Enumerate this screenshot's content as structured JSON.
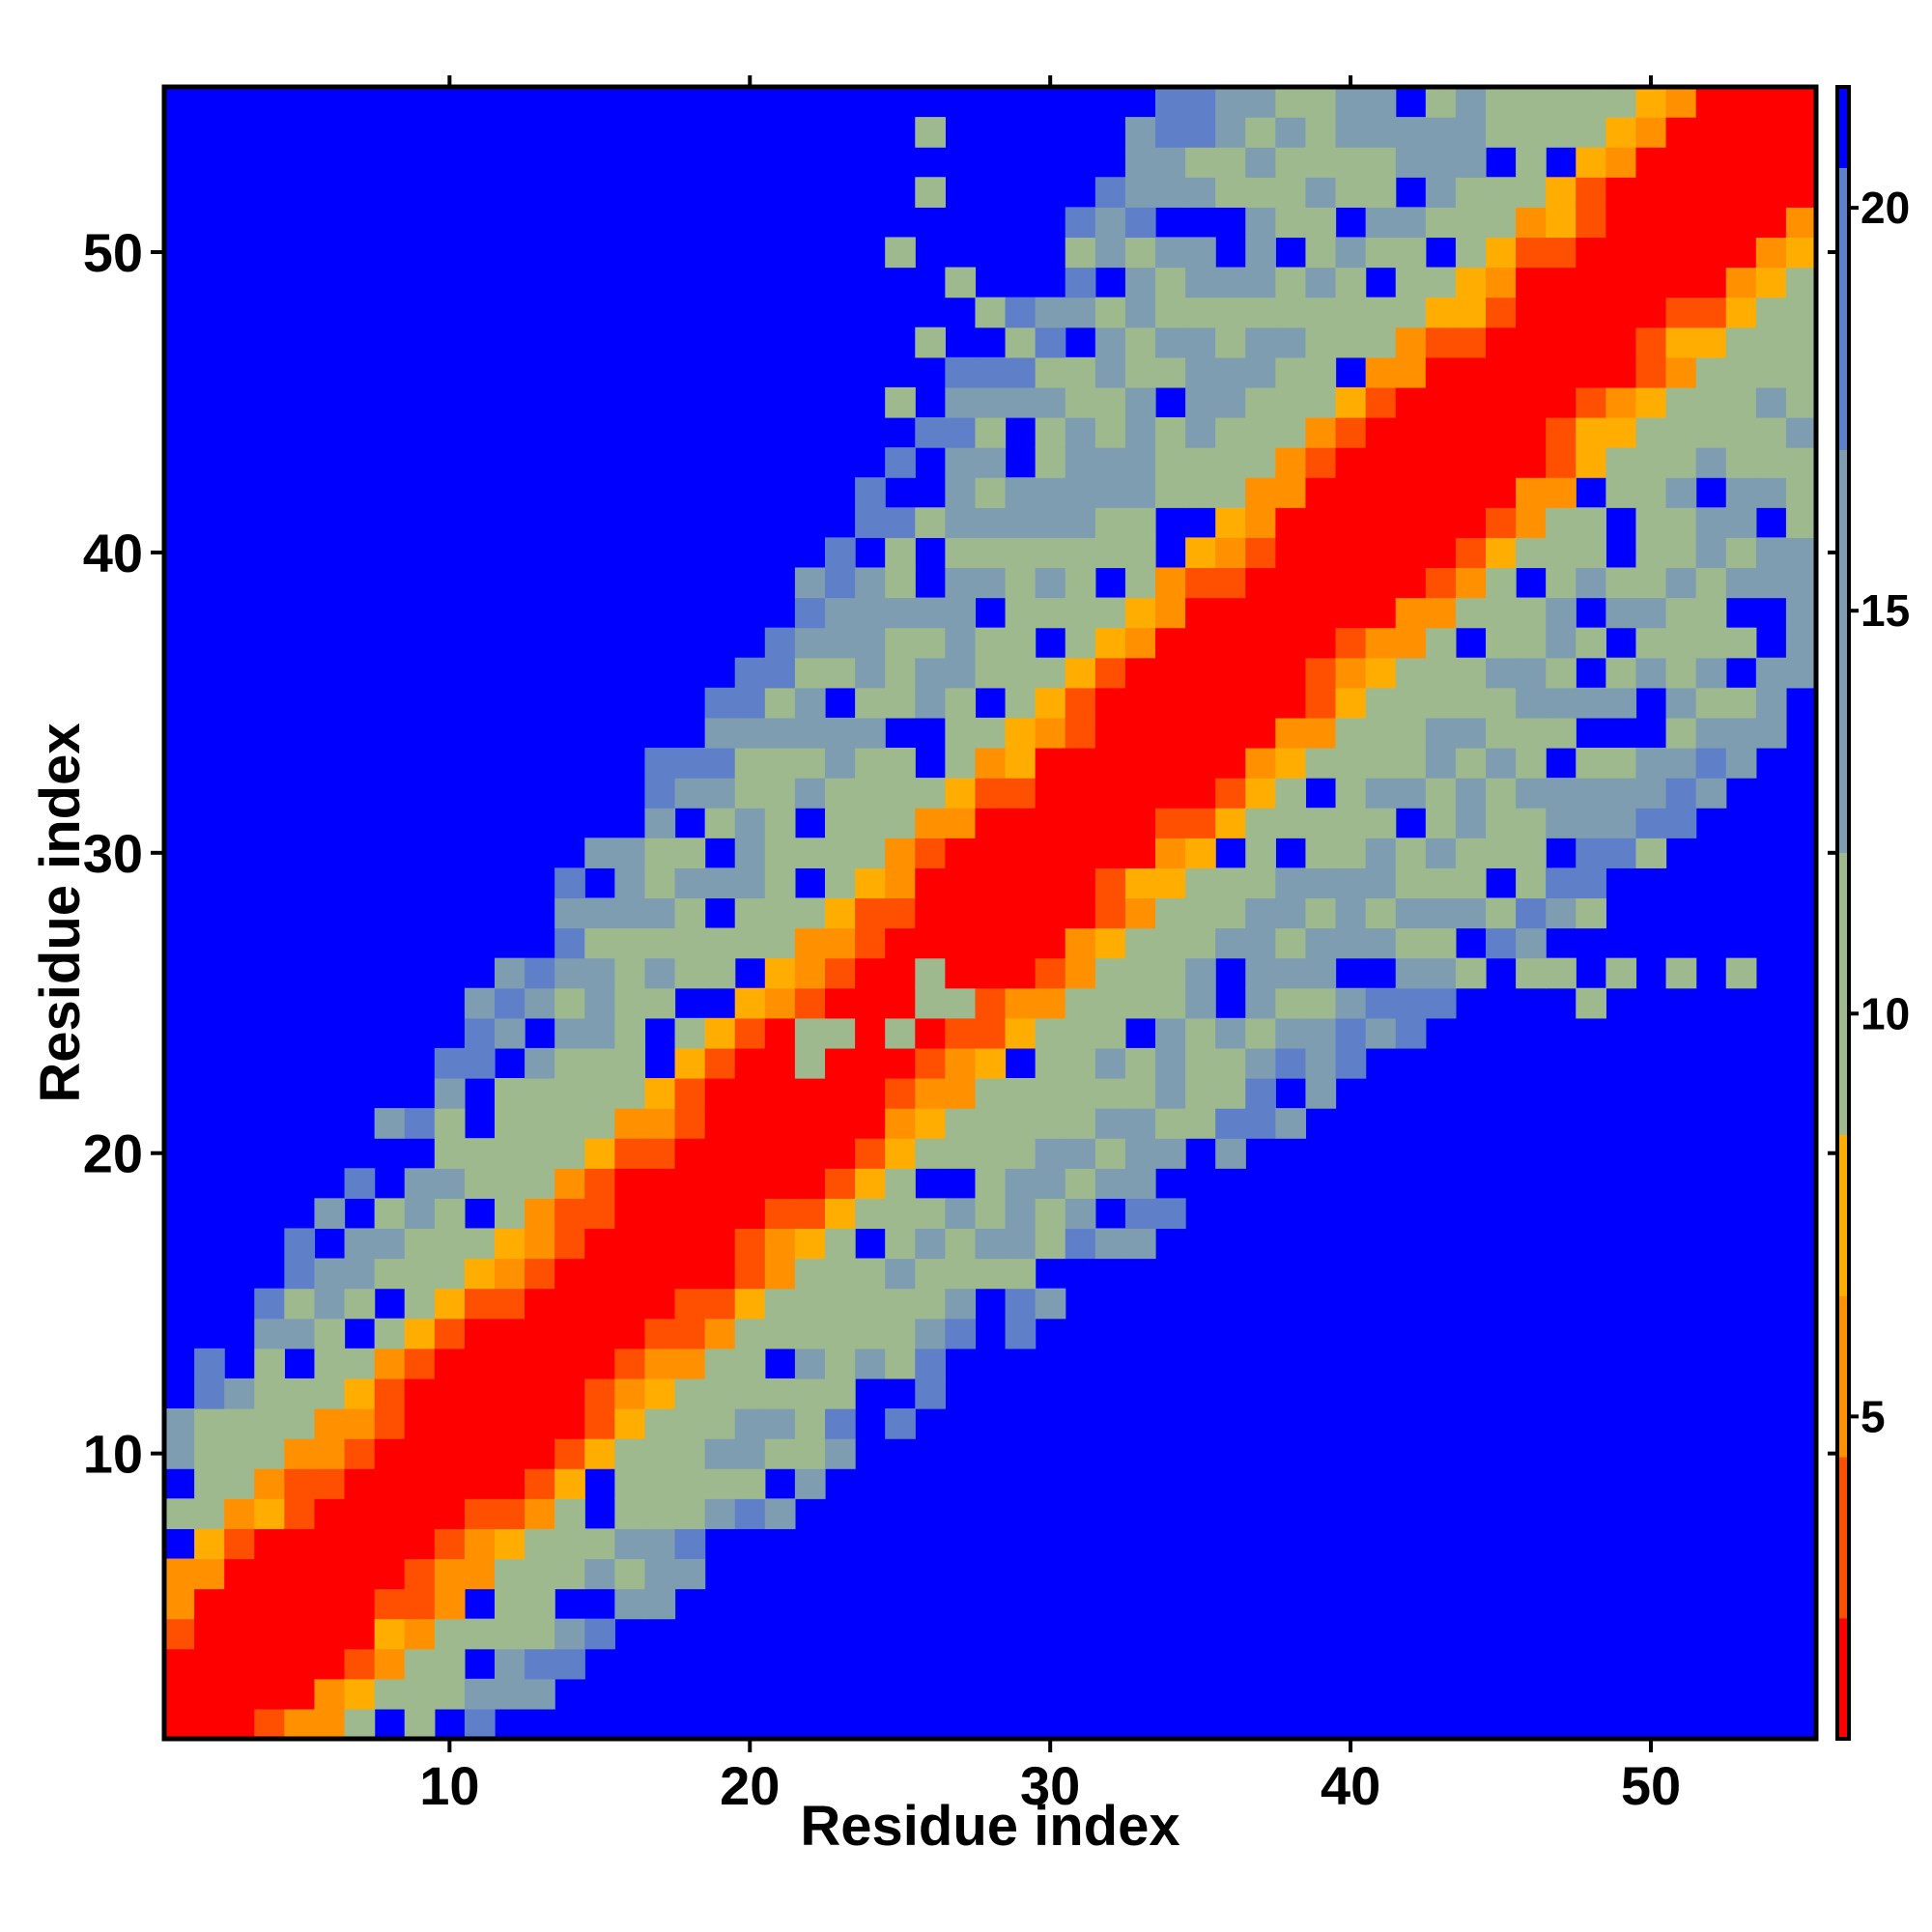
{
  "chart_data": {
    "type": "heatmap",
    "title": "",
    "xlabel": "Residue index",
    "ylabel": "Residue index",
    "n": 55,
    "xlim": [
      0.5,
      55.5
    ],
    "ylim": [
      0.5,
      55.5
    ],
    "x_ticks": [
      10,
      20,
      30,
      40,
      50
    ],
    "y_ticks": [
      10,
      20,
      30,
      40,
      50
    ],
    "colorbar": {
      "ticks": [
        5,
        10,
        15,
        20
      ],
      "range": [
        1,
        21.5
      ],
      "colors": {
        "near": "#ff0000",
        "orange_red": "#ff4f00",
        "orange": "#ff9000",
        "amber": "#ffad00",
        "sage": "#9fb98f",
        "gray_blue": "#7f9db1",
        "steel_blue": "#5f80c8",
        "far": "#0000ff"
      }
    },
    "band_note": "Symmetric residue-distance map: values rise from ~0 on the diagonal to >21 far from it; cells beyond cutoff are shown in the far color.",
    "lower_contacts": [
      [
        22,
        23
      ],
      [
        22,
        24
      ],
      [
        23,
        24
      ],
      [
        25,
        24
      ],
      [
        26,
        25
      ],
      [
        26,
        26
      ],
      [
        27,
        25
      ],
      [
        21,
        10
      ],
      [
        22,
        10
      ],
      [
        22,
        11
      ],
      [
        21,
        12
      ],
      [
        23,
        13
      ],
      [
        24,
        14
      ],
      [
        25,
        15
      ],
      [
        24,
        15
      ],
      [
        26,
        16
      ],
      [
        27,
        17
      ],
      [
        28,
        16
      ]
    ],
    "upper_contacts": [
      [
        42,
        27
      ],
      [
        43,
        27
      ],
      [
        44,
        26
      ],
      [
        46,
        26
      ],
      [
        47,
        26
      ],
      [
        48,
        25
      ],
      [
        49,
        26
      ],
      [
        51,
        26
      ],
      [
        53,
        26
      ],
      [
        40,
        32
      ],
      [
        41,
        31
      ],
      [
        44,
        29
      ],
      [
        45,
        28
      ],
      [
        46,
        29
      ],
      [
        48,
        28
      ],
      [
        50,
        30
      ],
      [
        26,
        54
      ],
      [
        26,
        52
      ],
      [
        25,
        50
      ],
      [
        27,
        49
      ],
      [
        28,
        48
      ],
      [
        29,
        47
      ],
      [
        30,
        46
      ],
      [
        31,
        50
      ],
      [
        33,
        50
      ],
      [
        26,
        47
      ],
      [
        25,
        45
      ]
    ]
  }
}
